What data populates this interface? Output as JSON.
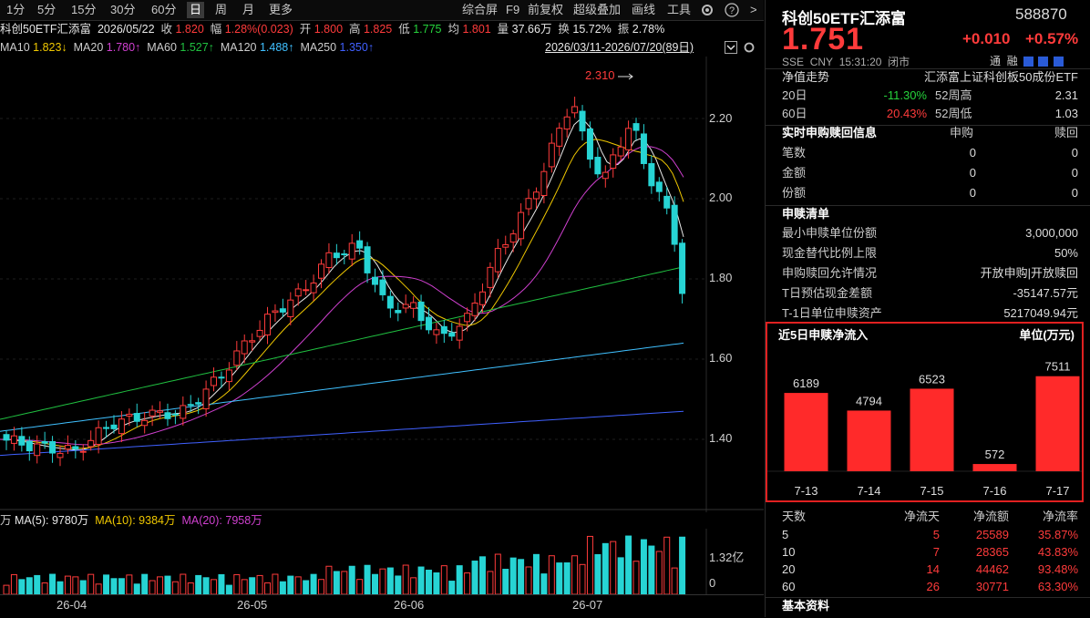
{
  "toolbar": {
    "left": [
      "1分",
      "5分",
      "15分",
      "30分",
      "60分",
      "日",
      "周",
      "月",
      "更多"
    ],
    "right": [
      "综合屏",
      "F9",
      "前复权",
      "超级叠加",
      "画线",
      "工具"
    ],
    "help_icon": "question-icon",
    "settings_icon": "gear-icon",
    "arrow": ">"
  },
  "info": {
    "name": "科创50ETF汇添富",
    "date": "2026/05/22",
    "close_label": "收",
    "close": "1.820",
    "chg_label": "幅",
    "chg": "1.28%(0.023)",
    "open_label": "开",
    "open": "1.800",
    "high_label": "高",
    "high": "1.825",
    "low_label": "低",
    "low": "1.775",
    "avg_label": "均",
    "avg": "1.801",
    "vol_label": "量",
    "vol": "37.66万",
    "turn_label": "换",
    "turn": "15.72%",
    "amp_label": "振",
    "amp": "2.78%"
  },
  "ma": {
    "ma10_label": "MA10",
    "ma10": "1.823↓",
    "ma20_label": "MA20",
    "ma20": "1.780↑",
    "ma60_label": "MA60",
    "ma60": "1.527↑",
    "ma120_label": "MA120",
    "ma120": "1.488↑",
    "ma250_label": "MA250",
    "ma250": "1.350↑",
    "range": "2026/03/11-2026/07/20(89日)",
    "colors": {
      "ma5": "#e8e8e8",
      "ma10": "#f0c800",
      "ma20": "#d040d0",
      "ma60": "#20c040",
      "ma120": "#40c0ff",
      "ma250": "#4060ff"
    }
  },
  "price_axis": [
    "2.20",
    "2.00",
    "1.80",
    "1.60",
    "1.40"
  ],
  "max_marker": "2.310",
  "volume": {
    "ma5_label": "MA(5):",
    "ma5": "9780万",
    "ma10_label": "MA(10):",
    "ma10": "9384万",
    "ma20_label": "MA(20):",
    "ma20": "7958万",
    "axis": [
      "1.32亿",
      "0"
    ],
    "months": [
      "26-04",
      "26-05",
      "26-06",
      "26-07"
    ]
  },
  "quote": {
    "name": "科创50ETF汇添富",
    "code": "588870",
    "price": "1.751",
    "change": "+0.010",
    "change_pct": "+0.57%",
    "exchange": "SSE",
    "currency": "CNY",
    "time": "15:31:20",
    "status": "闭市",
    "tags": [
      "通",
      "融"
    ]
  },
  "nav": {
    "title": "净值走势",
    "fund_name": "汇添富上证科创板50成份ETF",
    "rows": [
      {
        "k": "20日",
        "v": "-11.30%",
        "k2": "52周高",
        "v2": "2.31",
        "neg": true
      },
      {
        "k": "60日",
        "v": "20.43%",
        "k2": "52周低",
        "v2": "1.03",
        "neg": false
      }
    ]
  },
  "realtime": {
    "title": "实时申购赎回信息",
    "col1": "申购",
    "col2": "赎回",
    "rows": [
      {
        "k": "笔数",
        "a": "0",
        "b": "0"
      },
      {
        "k": "金额",
        "a": "0",
        "b": "0"
      },
      {
        "k": "份额",
        "a": "0",
        "b": "0"
      }
    ]
  },
  "list": {
    "title": "申赎清单",
    "rows": [
      {
        "k": "最小申赎单位份额",
        "v": "3,000,000"
      },
      {
        "k": "现金替代比例上限",
        "v": "50%"
      },
      {
        "k": "申购赎回允许情况",
        "v": "开放申购|开放赎回"
      },
      {
        "k": "T日预估现金差额",
        "v": "-35147.57元"
      },
      {
        "k": "T-1日单位申赎资产",
        "v": "5217049.94元"
      }
    ]
  },
  "chart_data": {
    "type": "bar",
    "title": "近5日申赎净流入",
    "unit": "单位(万元)",
    "categories": [
      "7-13",
      "7-14",
      "7-15",
      "7-16",
      "7-17"
    ],
    "values": [
      6189,
      4794,
      6523,
      572,
      7511
    ],
    "color": "#ff2a2a",
    "ylim": [
      0,
      8500
    ]
  },
  "flow_table": {
    "headers": [
      "天数",
      "净流天",
      "净流额",
      "净流率"
    ],
    "rows": [
      [
        "5",
        "5",
        "25589",
        "35.87%"
      ],
      [
        "10",
        "7",
        "28365",
        "43.83%"
      ],
      [
        "20",
        "14",
        "44462",
        "93.48%"
      ],
      [
        "60",
        "26",
        "30771",
        "63.30%"
      ]
    ]
  },
  "basic": {
    "title": "基本资料"
  }
}
